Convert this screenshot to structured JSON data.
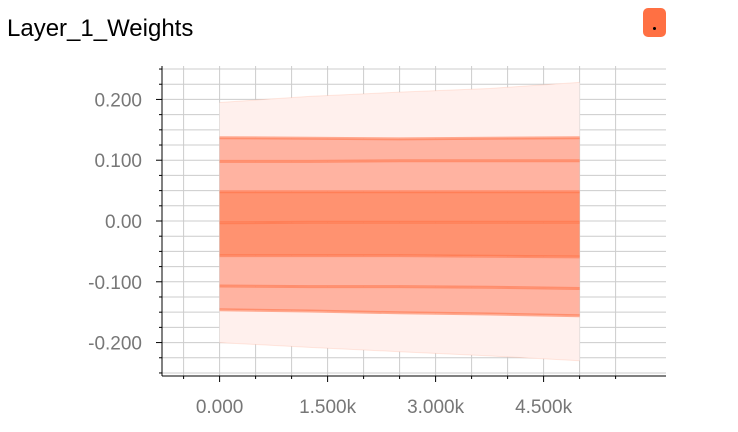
{
  "card": {
    "title": "Layer_1_Weights",
    "expand_label": "."
  },
  "colors": {
    "band_outer": "#fff0ed",
    "band_mid": "#ffb3a1",
    "band_inner": "#ff9270",
    "median": "#ff7043",
    "button": "#ff7043",
    "grid": "#cccccc",
    "tick_text": "#777777"
  },
  "chart_data": {
    "type": "area",
    "title": "",
    "xlabel": "",
    "ylabel": "",
    "xlim": [
      -800,
      6200
    ],
    "ylim": [
      -0.255,
      0.255
    ],
    "grid": true,
    "x_ticks": [
      0,
      1500,
      3000,
      4500
    ],
    "x_tick_labels": [
      "0.000",
      "1.500k",
      "3.000k",
      "4.500k"
    ],
    "y_ticks": [
      0.2,
      0.1,
      0.0,
      -0.1,
      -0.2
    ],
    "y_tick_labels": [
      "0.200",
      "0.100",
      "0.00",
      "-0.100",
      "-0.200"
    ],
    "x": [
      0,
      1250,
      2500,
      3750,
      5000
    ],
    "series": [
      {
        "values": [
          0.195,
          0.205,
          0.212,
          0.218,
          0.228
        ]
      },
      {
        "values": [
          0.137,
          0.136,
          0.135,
          0.136,
          0.137
        ]
      },
      {
        "values": [
          0.098,
          0.098,
          0.099,
          0.099,
          0.099
        ]
      },
      {
        "values": [
          0.048,
          0.048,
          0.048,
          0.048,
          0.048
        ]
      },
      {
        "values": [
          -0.003,
          -0.002,
          -0.002,
          -0.002,
          -0.002
        ]
      },
      {
        "values": [
          -0.057,
          -0.057,
          -0.057,
          -0.058,
          -0.059
        ]
      },
      {
        "values": [
          -0.107,
          -0.108,
          -0.108,
          -0.109,
          -0.111
        ]
      },
      {
        "values": [
          -0.146,
          -0.148,
          -0.151,
          -0.153,
          -0.156
        ]
      },
      {
        "values": [
          -0.2,
          -0.208,
          -0.215,
          -0.222,
          -0.23
        ]
      }
    ]
  }
}
